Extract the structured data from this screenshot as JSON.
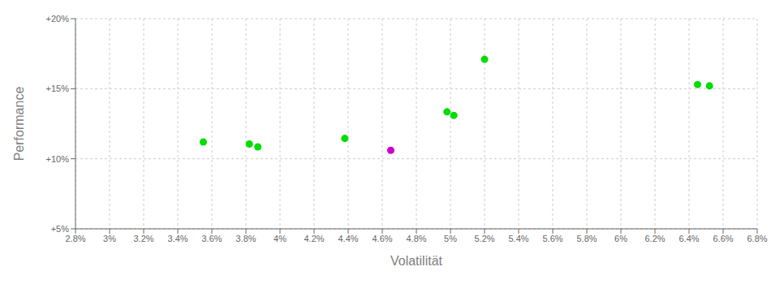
{
  "chart_data": {
    "type": "scatter",
    "xlabel": "Volatilität",
    "ylabel": "Performance",
    "series": [
      {
        "color": "#00dd00",
        "x": [
          3.55,
          3.82,
          3.87,
          4.38,
          4.98,
          5.02,
          5.2,
          6.45,
          6.52
        ],
        "values": [
          11.2,
          11.05,
          10.85,
          11.45,
          13.35,
          13.1,
          17.1,
          15.3,
          15.2
        ]
      },
      {
        "color": "#cc00cc",
        "x": [
          4.65
        ],
        "values": [
          10.6
        ]
      }
    ],
    "xlim": [
      2.8,
      6.8
    ],
    "ylim": [
      5.0,
      20.0
    ],
    "xticks": [
      {
        "value": 2.8,
        "label": "2.8%"
      },
      {
        "value": 3.0,
        "label": "3%"
      },
      {
        "value": 3.2,
        "label": "3.2%"
      },
      {
        "value": 3.4,
        "label": "3.4%"
      },
      {
        "value": 3.6,
        "label": "3.6%"
      },
      {
        "value": 3.8,
        "label": "3.8%"
      },
      {
        "value": 4.0,
        "label": "4%"
      },
      {
        "value": 4.2,
        "label": "4.2%"
      },
      {
        "value": 4.4,
        "label": "4.4%"
      },
      {
        "value": 4.6,
        "label": "4.6%"
      },
      {
        "value": 4.8,
        "label": "4.8%"
      },
      {
        "value": 5.0,
        "label": "5%"
      },
      {
        "value": 5.2,
        "label": "5.2%"
      },
      {
        "value": 5.4,
        "label": "5.4%"
      },
      {
        "value": 5.6,
        "label": "5.6%"
      },
      {
        "value": 5.8,
        "label": "5.8%"
      },
      {
        "value": 6.0,
        "label": "6%"
      },
      {
        "value": 6.2,
        "label": "6.2%"
      },
      {
        "value": 6.4,
        "label": "6.4%"
      },
      {
        "value": 6.6,
        "label": "6.6%"
      },
      {
        "value": 6.8,
        "label": "6.8%"
      }
    ],
    "yticks": [
      {
        "value": 5.0,
        "label": "+5%"
      },
      {
        "value": 10.0,
        "label": "+10%"
      },
      {
        "value": 15.0,
        "label": "+15%"
      },
      {
        "value": 20.0,
        "label": "+20%"
      }
    ],
    "grid": true
  }
}
